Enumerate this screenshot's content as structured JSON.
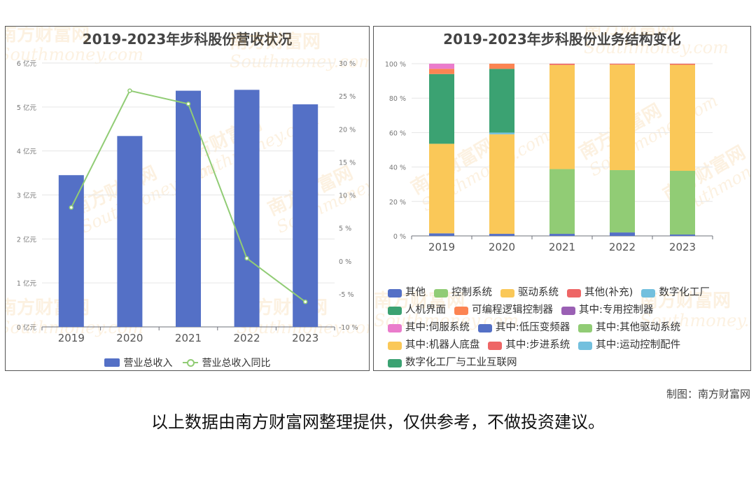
{
  "credit": "制图：南方财富网",
  "disclaimer": "以上数据由南方财富网整理提供，仅供参考，不做投资建议。",
  "watermark": {
    "cn": "南方财富网",
    "en": "Southmoney.com"
  },
  "chart_data": [
    {
      "type": "bar",
      "title": "2019-2023年步科股份营收状况",
      "categories": [
        "2019",
        "2020",
        "2021",
        "2022",
        "2023"
      ],
      "y_left": {
        "ticks": [
          "0 亿元",
          "1 亿元",
          "2 亿元",
          "3 亿元",
          "4 亿元",
          "5 亿元",
          "6 亿元"
        ],
        "ylim": [
          0,
          6
        ]
      },
      "y_right": {
        "ticks": [
          "-10 %",
          "-5 %",
          "0 %",
          "5 %",
          "10 %",
          "15 %",
          "20 %",
          "25 %",
          "30 %"
        ],
        "ylim": [
          -10,
          30
        ]
      },
      "series": [
        {
          "name": "营业总收入",
          "type": "bar",
          "axis": "left",
          "color": "#5470c6",
          "values": [
            3.45,
            4.34,
            5.37,
            5.39,
            5.06
          ]
        },
        {
          "name": "营业总收入同比",
          "type": "line",
          "axis": "right",
          "color": "#91cc75",
          "values": [
            8.1,
            25.8,
            23.8,
            0.4,
            -6.2
          ]
        }
      ],
      "grid": true,
      "legend": "bottom"
    },
    {
      "type": "bar",
      "stacked": true,
      "title": "2019-2023年步科股份业务结构变化",
      "categories": [
        "2019",
        "2020",
        "2021",
        "2022",
        "2023"
      ],
      "y_ticks": [
        "0 %",
        "20 %",
        "40 %",
        "60 %",
        "80 %",
        "100 %"
      ],
      "ylim": [
        0,
        100
      ],
      "series": [
        {
          "name": "其他",
          "color": "#5470c6",
          "values": [
            1.5,
            1.2,
            1.2,
            2.0,
            0.8
          ]
        },
        {
          "name": "控制系统",
          "color": "#91cc75",
          "values": [
            0,
            0,
            37.6,
            36.2,
            37.0
          ]
        },
        {
          "name": "驱动系统",
          "color": "#fac858",
          "values": [
            52.0,
            57.8,
            60.5,
            61.3,
            61.6
          ]
        },
        {
          "name": "其他(补充)",
          "color": "#ee6666",
          "values": [
            0,
            0,
            0.7,
            0.5,
            0.6
          ]
        },
        {
          "name": "数字化工厂",
          "color": "#73c0de",
          "values": [
            0,
            1.0,
            0,
            0,
            0
          ]
        },
        {
          "name": "人机界面",
          "color": "#3ba272",
          "values": [
            40.5,
            37.0,
            0,
            0,
            0
          ]
        },
        {
          "name": "可编程逻辑控制器",
          "color": "#fc8452",
          "values": [
            3.0,
            3.0,
            0,
            0,
            0
          ]
        },
        {
          "name": "其中:专用控制器",
          "color": "#9a60b4",
          "values": [
            0,
            0,
            0,
            0,
            0
          ]
        },
        {
          "name": "其中:伺服系统",
          "color": "#ea7ccc",
          "values": [
            3.0,
            0,
            0,
            0,
            0
          ]
        },
        {
          "name": "其中:低压变频器",
          "color": "#5470c6",
          "values": [
            0,
            0,
            0,
            0,
            0
          ]
        },
        {
          "name": "其中:其他驱动系统",
          "color": "#91cc75",
          "values": [
            0,
            0,
            0,
            0,
            0
          ]
        },
        {
          "name": "其中:机器人底盘",
          "color": "#fac858",
          "values": [
            0,
            0,
            0,
            0,
            0
          ]
        },
        {
          "name": "其中:步进系统",
          "color": "#ee6666",
          "values": [
            0,
            0,
            0,
            0,
            0
          ]
        },
        {
          "name": "其中:运动控制配件",
          "color": "#73c0de",
          "values": [
            0,
            0,
            0,
            0,
            0
          ]
        },
        {
          "name": "数字化工厂与工业互联网",
          "color": "#3ba272",
          "values": [
            0,
            0,
            0,
            0,
            0
          ]
        }
      ],
      "legend_rows": [
        [
          0,
          1,
          2,
          3,
          4
        ],
        [
          5,
          6,
          7
        ],
        [
          8,
          9,
          10
        ],
        [
          11,
          12,
          13
        ],
        [
          14
        ]
      ],
      "grid": true,
      "legend": "bottom"
    }
  ]
}
